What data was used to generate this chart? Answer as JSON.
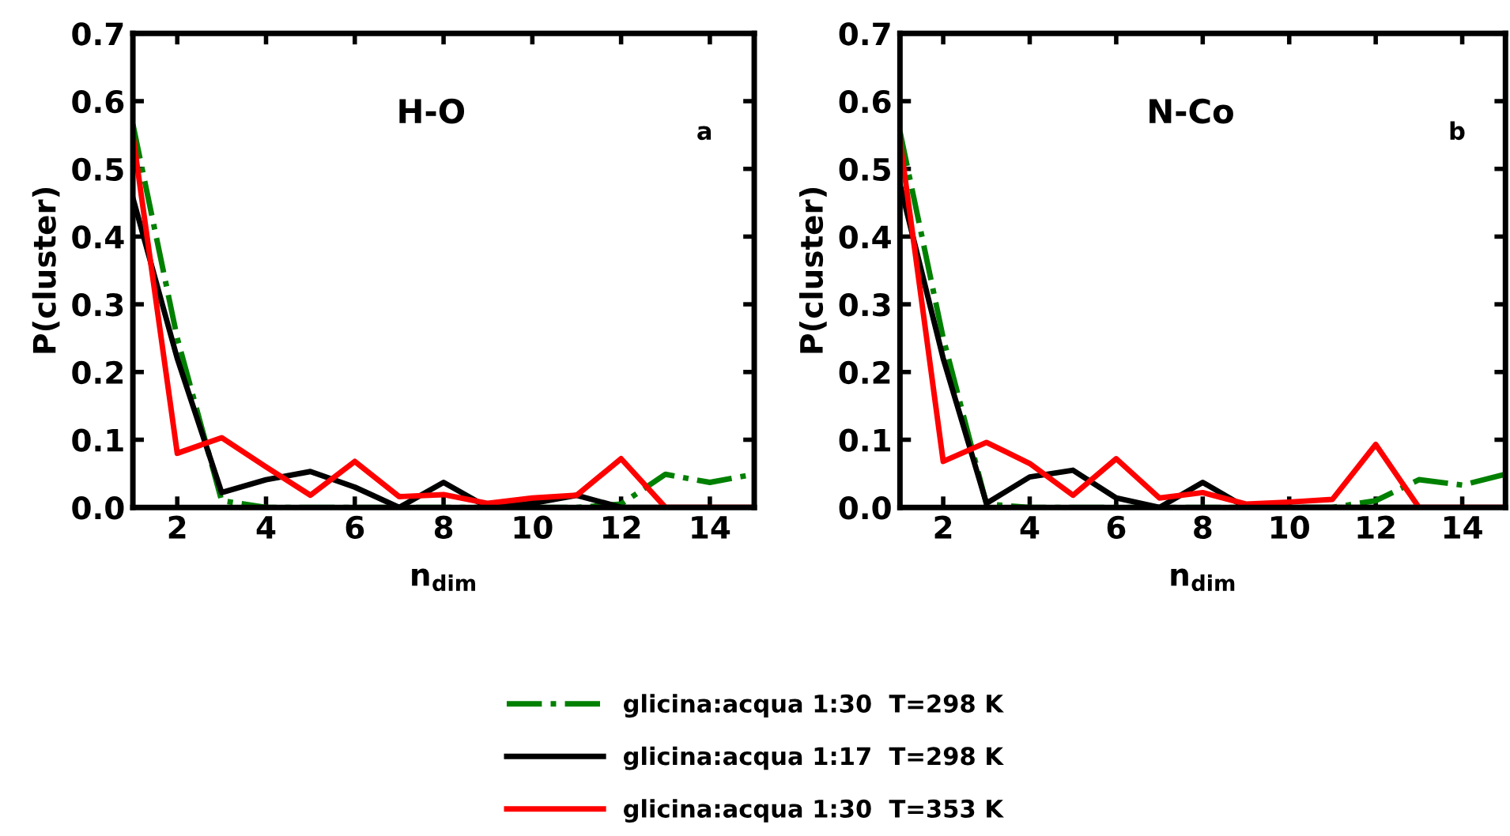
{
  "chart_data": [
    {
      "type": "line",
      "ylabel": "P(cluster)",
      "xlabel": "n$_{dim}$",
      "annotations": [
        "H-O",
        "a"
      ],
      "xlim": [
        1,
        15
      ],
      "xticks": [
        2,
        4,
        6,
        8,
        10,
        12,
        14
      ],
      "ylim": [
        0,
        0.7
      ],
      "yticks": [
        {
          "value": 0,
          "label": "0.0"
        },
        0.1,
        0.2,
        0.3,
        0.4,
        0.5,
        0.6,
        0.7
      ],
      "legend": "bottom",
      "grid": false,
      "x": [
        1,
        2,
        3,
        4,
        5,
        6,
        7,
        8,
        9,
        10,
        11,
        12,
        13,
        14,
        15
      ],
      "series": [
        {
          "name": "glicina:acqua 1:30  T=298 K",
          "color": "#008000",
          "line_style": "dashdot",
          "values": [
            0.566,
            0.25,
            0.01,
            0,
            0,
            0,
            0,
            0,
            0,
            0,
            0,
            0.005,
            0.049,
            0.037,
            0.049
          ]
        },
        {
          "name": "glicina:acqua 1:17  T=298 K",
          "color": "#000000",
          "line_style": "solid",
          "values": [
            0.457,
            0.22,
            0.022,
            0.041,
            0.053,
            0.03,
            0,
            0.037,
            0,
            0.006,
            0.018,
            0,
            0,
            0,
            0
          ]
        },
        {
          "name": "glicina:acqua 1:30  T=353 K",
          "color": "#ff0000",
          "line_style": "solid",
          "values": [
            0.55,
            0.08,
            0.103,
            0.06,
            0.018,
            0.068,
            0.016,
            0.019,
            0.006,
            0.014,
            0.018,
            0.072,
            0,
            0,
            0
          ]
        }
      ]
    },
    {
      "type": "line",
      "ylabel": "P(cluster)",
      "xlabel": "n$_{dim}$",
      "annotations": [
        "N-Co",
        "b"
      ],
      "xlim": [
        1,
        15
      ],
      "xticks": [
        2,
        4,
        6,
        8,
        10,
        12,
        14
      ],
      "ylim": [
        0,
        0.7
      ],
      "yticks": [
        {
          "value": 0,
          "label": "0.0"
        },
        0.1,
        0.2,
        0.3,
        0.4,
        0.5,
        0.6,
        0.7
      ],
      "grid": false,
      "x": [
        1,
        2,
        3,
        4,
        5,
        6,
        7,
        8,
        9,
        10,
        11,
        12,
        13,
        14,
        15
      ],
      "series": [
        {
          "color": "#008000",
          "line_style": "dashdot",
          "values": [
            0.555,
            0.25,
            0.005,
            0,
            0,
            0,
            0,
            0,
            0,
            0,
            0,
            0.01,
            0.041,
            0.033,
            0.049
          ]
        },
        {
          "color": "#000000",
          "line_style": "solid",
          "values": [
            0.477,
            0.22,
            0.006,
            0.045,
            0.055,
            0.014,
            0,
            0.037,
            0,
            0,
            0,
            0,
            0,
            0,
            0
          ]
        },
        {
          "color": "#ff0000",
          "line_style": "solid",
          "values": [
            0.543,
            0.068,
            0.096,
            0.065,
            0.018,
            0.072,
            0.014,
            0.022,
            0.005,
            0.008,
            0.012,
            0.093,
            0,
            0,
            0
          ]
        }
      ]
    }
  ]
}
